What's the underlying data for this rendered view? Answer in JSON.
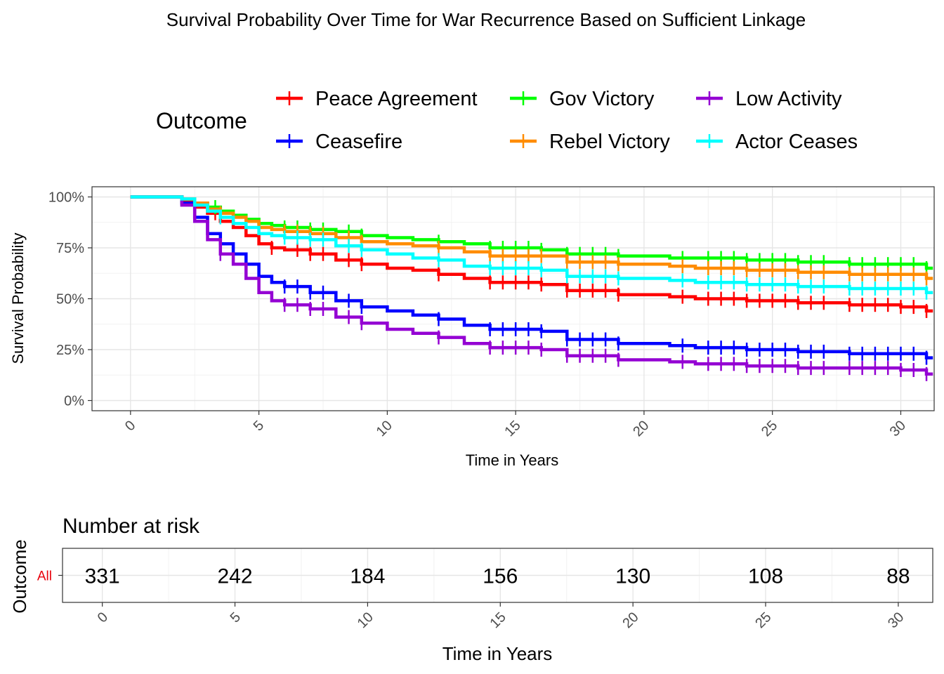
{
  "title": "Survival Probability Over Time for War Recurrence Based on Sufficient Linkage",
  "colors": {
    "panel_border": "#333333",
    "grid": "#e6e6e6",
    "risk_strata_label": "#e8000b"
  },
  "chart_data": {
    "type": "line",
    "subtype": "kaplan-meier step",
    "legend": {
      "title": "Outcome",
      "position": "top"
    },
    "xlabel": "Time in Years",
    "ylabel": "Survival Probability",
    "xlim": [
      -1.5,
      31.3
    ],
    "ylim": [
      -0.05,
      1.05
    ],
    "x_ticks": [
      0,
      5,
      10,
      15,
      20,
      25,
      30
    ],
    "x_tick_labels": [
      "0",
      "5",
      "10",
      "15",
      "20",
      "25",
      "30"
    ],
    "y_ticks": [
      0,
      0.25,
      0.5,
      0.75,
      1.0
    ],
    "y_tick_labels": [
      "0%",
      "25%",
      "50%",
      "75%",
      "100%"
    ],
    "grid": true,
    "series": [
      {
        "name": "Peace Agreement",
        "color": "#ff0000",
        "points": [
          [
            0,
            1
          ],
          [
            1.5,
            1
          ],
          [
            2,
            0.98
          ],
          [
            2.5,
            0.95
          ],
          [
            3,
            0.92
          ],
          [
            3.5,
            0.88
          ],
          [
            4,
            0.85
          ],
          [
            4.5,
            0.81
          ],
          [
            5,
            0.77
          ],
          [
            5.5,
            0.75
          ],
          [
            6,
            0.74
          ],
          [
            7,
            0.72
          ],
          [
            8,
            0.69
          ],
          [
            9,
            0.67
          ],
          [
            10,
            0.65
          ],
          [
            11,
            0.64
          ],
          [
            12,
            0.62
          ],
          [
            13,
            0.6
          ],
          [
            14,
            0.58
          ],
          [
            16,
            0.57
          ],
          [
            17,
            0.54
          ],
          [
            19,
            0.52
          ],
          [
            21,
            0.51
          ],
          [
            22,
            0.5
          ],
          [
            24,
            0.49
          ],
          [
            26,
            0.48
          ],
          [
            28,
            0.47
          ],
          [
            30,
            0.46
          ],
          [
            31,
            0.44
          ]
        ],
        "censor_x": [
          3.3,
          5.5,
          6.5,
          7,
          7.5,
          8.5,
          9,
          12,
          14,
          14.5,
          15,
          15.5,
          16,
          17,
          17.5,
          18,
          18.5,
          19,
          21.5,
          22.5,
          23,
          23.5,
          24,
          24.5,
          25,
          25.5,
          26,
          26.5,
          27,
          28,
          28.5,
          29,
          29.5,
          30,
          30.5,
          31
        ]
      },
      {
        "name": "Ceasefire",
        "color": "#0000ff",
        "points": [
          [
            0,
            1
          ],
          [
            1.5,
            1
          ],
          [
            2,
            0.97
          ],
          [
            2.5,
            0.9
          ],
          [
            3,
            0.82
          ],
          [
            3.5,
            0.77
          ],
          [
            4,
            0.72
          ],
          [
            4.5,
            0.67
          ],
          [
            5,
            0.61
          ],
          [
            5.5,
            0.58
          ],
          [
            6,
            0.56
          ],
          [
            7,
            0.53
          ],
          [
            8,
            0.49
          ],
          [
            9,
            0.46
          ],
          [
            10,
            0.44
          ],
          [
            11,
            0.42
          ],
          [
            12,
            0.4
          ],
          [
            13,
            0.37
          ],
          [
            14,
            0.35
          ],
          [
            16,
            0.34
          ],
          [
            17,
            0.3
          ],
          [
            19,
            0.28
          ],
          [
            21,
            0.27
          ],
          [
            22,
            0.26
          ],
          [
            24,
            0.25
          ],
          [
            26,
            0.24
          ],
          [
            28,
            0.23
          ],
          [
            30,
            0.23
          ],
          [
            31,
            0.21
          ]
        ],
        "censor_x": [
          3.5,
          6,
          6.5,
          7,
          7.5,
          8.5,
          9,
          12,
          14,
          14.5,
          15,
          15.5,
          16,
          17,
          17.5,
          18,
          18.5,
          19,
          21.5,
          22.5,
          23,
          23.5,
          24,
          24.5,
          25,
          25.5,
          26,
          26.5,
          27,
          28,
          28.5,
          29,
          29.5,
          30,
          30.5,
          31
        ]
      },
      {
        "name": "Gov Victory",
        "color": "#00ff00",
        "points": [
          [
            0,
            1
          ],
          [
            1.5,
            1
          ],
          [
            2,
            0.99
          ],
          [
            2.5,
            0.97
          ],
          [
            3,
            0.95
          ],
          [
            3.5,
            0.93
          ],
          [
            4,
            0.91
          ],
          [
            4.5,
            0.89
          ],
          [
            5,
            0.87
          ],
          [
            5.5,
            0.86
          ],
          [
            6,
            0.85
          ],
          [
            7,
            0.84
          ],
          [
            8,
            0.83
          ],
          [
            9,
            0.81
          ],
          [
            10,
            0.8
          ],
          [
            11,
            0.79
          ],
          [
            12,
            0.78
          ],
          [
            13,
            0.77
          ],
          [
            14,
            0.75
          ],
          [
            16,
            0.74
          ],
          [
            17,
            0.72
          ],
          [
            19,
            0.71
          ],
          [
            21,
            0.7
          ],
          [
            22,
            0.7
          ],
          [
            24,
            0.69
          ],
          [
            26,
            0.68
          ],
          [
            28,
            0.67
          ],
          [
            30,
            0.67
          ],
          [
            31,
            0.65
          ]
        ],
        "censor_x": [
          3.3,
          6,
          6.5,
          7,
          7.5,
          8.5,
          9,
          12,
          14,
          14.5,
          15,
          15.5,
          16,
          17,
          17.5,
          18,
          18.5,
          19,
          21.5,
          22.5,
          23,
          23.5,
          24,
          24.5,
          25,
          25.5,
          26,
          26.5,
          27,
          28,
          28.5,
          29,
          29.5,
          30,
          30.5,
          31
        ]
      },
      {
        "name": "Rebel Victory",
        "color": "#ff8c00",
        "points": [
          [
            0,
            1
          ],
          [
            1.5,
            1
          ],
          [
            2,
            0.99
          ],
          [
            2.5,
            0.97
          ],
          [
            3,
            0.94
          ],
          [
            3.5,
            0.92
          ],
          [
            4,
            0.9
          ],
          [
            4.5,
            0.88
          ],
          [
            5,
            0.85
          ],
          [
            5.5,
            0.84
          ],
          [
            6,
            0.83
          ],
          [
            7,
            0.82
          ],
          [
            8,
            0.8
          ],
          [
            9,
            0.78
          ],
          [
            10,
            0.77
          ],
          [
            11,
            0.76
          ],
          [
            12,
            0.75
          ],
          [
            13,
            0.73
          ],
          [
            14,
            0.71
          ],
          [
            16,
            0.71
          ],
          [
            17,
            0.68
          ],
          [
            19,
            0.67
          ],
          [
            21,
            0.66
          ],
          [
            22,
            0.65
          ],
          [
            24,
            0.64
          ],
          [
            26,
            0.63
          ],
          [
            28,
            0.62
          ],
          [
            30,
            0.62
          ],
          [
            31,
            0.6
          ]
        ],
        "censor_x": [
          3.5,
          6,
          6.5,
          7,
          7.5,
          8.5,
          9,
          12,
          14,
          14.5,
          15,
          15.5,
          16,
          17,
          17.5,
          18,
          18.5,
          19,
          21.5,
          22.5,
          23,
          23.5,
          24,
          24.5,
          25,
          25.5,
          26,
          26.5,
          27,
          28,
          28.5,
          29,
          29.5,
          30,
          30.5,
          31
        ]
      },
      {
        "name": "Low Activity",
        "color": "#9400d3",
        "points": [
          [
            0,
            1
          ],
          [
            1.5,
            1
          ],
          [
            2,
            0.96
          ],
          [
            2.5,
            0.88
          ],
          [
            3,
            0.79
          ],
          [
            3.5,
            0.72
          ],
          [
            4,
            0.67
          ],
          [
            4.5,
            0.6
          ],
          [
            5,
            0.53
          ],
          [
            5.5,
            0.49
          ],
          [
            6,
            0.47
          ],
          [
            7,
            0.45
          ],
          [
            8,
            0.41
          ],
          [
            9,
            0.38
          ],
          [
            10,
            0.35
          ],
          [
            11,
            0.33
          ],
          [
            12,
            0.31
          ],
          [
            13,
            0.28
          ],
          [
            14,
            0.26
          ],
          [
            16,
            0.25
          ],
          [
            17,
            0.22
          ],
          [
            19,
            0.2
          ],
          [
            21,
            0.19
          ],
          [
            22,
            0.18
          ],
          [
            24,
            0.17
          ],
          [
            26,
            0.16
          ],
          [
            28,
            0.16
          ],
          [
            30,
            0.15
          ],
          [
            31,
            0.13
          ]
        ],
        "censor_x": [
          3.5,
          6,
          6.5,
          7,
          7.5,
          8.5,
          9,
          12,
          14,
          14.5,
          15,
          15.5,
          16,
          17,
          17.5,
          18,
          18.5,
          19,
          21.5,
          22.5,
          23,
          23.5,
          24,
          24.5,
          25,
          25.5,
          26,
          26.5,
          27,
          28,
          28.5,
          29,
          29.5,
          30,
          30.5,
          31
        ]
      },
      {
        "name": "Actor Ceases",
        "color": "#00ffff",
        "points": [
          [
            0,
            1
          ],
          [
            1.5,
            1
          ],
          [
            2,
            0.99
          ],
          [
            2.5,
            0.96
          ],
          [
            3,
            0.93
          ],
          [
            3.5,
            0.9
          ],
          [
            4,
            0.87
          ],
          [
            4.5,
            0.85
          ],
          [
            5,
            0.82
          ],
          [
            5.5,
            0.81
          ],
          [
            6,
            0.8
          ],
          [
            7,
            0.79
          ],
          [
            8,
            0.76
          ],
          [
            9,
            0.74
          ],
          [
            10,
            0.72
          ],
          [
            11,
            0.7
          ],
          [
            12,
            0.69
          ],
          [
            13,
            0.66
          ],
          [
            14,
            0.65
          ],
          [
            16,
            0.64
          ],
          [
            17,
            0.61
          ],
          [
            19,
            0.6
          ],
          [
            21,
            0.59
          ],
          [
            22,
            0.58
          ],
          [
            24,
            0.57
          ],
          [
            26,
            0.56
          ],
          [
            28,
            0.55
          ],
          [
            30,
            0.55
          ],
          [
            31,
            0.53
          ]
        ],
        "censor_x": [
          3.5,
          6,
          6.5,
          7,
          7.5,
          8.5,
          9,
          12,
          14,
          14.5,
          15,
          15.5,
          16,
          17,
          17.5,
          18,
          18.5,
          19,
          21.5,
          22.5,
          23,
          23.5,
          24,
          24.5,
          25,
          25.5,
          26,
          26.5,
          27,
          28,
          28.5,
          29,
          29.5,
          30,
          30.5,
          31
        ]
      }
    ]
  },
  "risk_table": {
    "title": "Number at risk",
    "ylabel": "Outcome",
    "xlabel": "Time in Years",
    "strata": [
      {
        "label": "All",
        "counts": [
          {
            "x": 0,
            "n": "331"
          },
          {
            "x": 5,
            "n": "242"
          },
          {
            "x": 10,
            "n": "184"
          },
          {
            "x": 15,
            "n": "156"
          },
          {
            "x": 20,
            "n": "130"
          },
          {
            "x": 25,
            "n": "108"
          },
          {
            "x": 30,
            "n": "88"
          }
        ]
      }
    ],
    "x_ticks": [
      0,
      5,
      10,
      15,
      20,
      25,
      30
    ],
    "x_tick_labels": [
      "0",
      "5",
      "10",
      "15",
      "20",
      "25",
      "30"
    ]
  }
}
